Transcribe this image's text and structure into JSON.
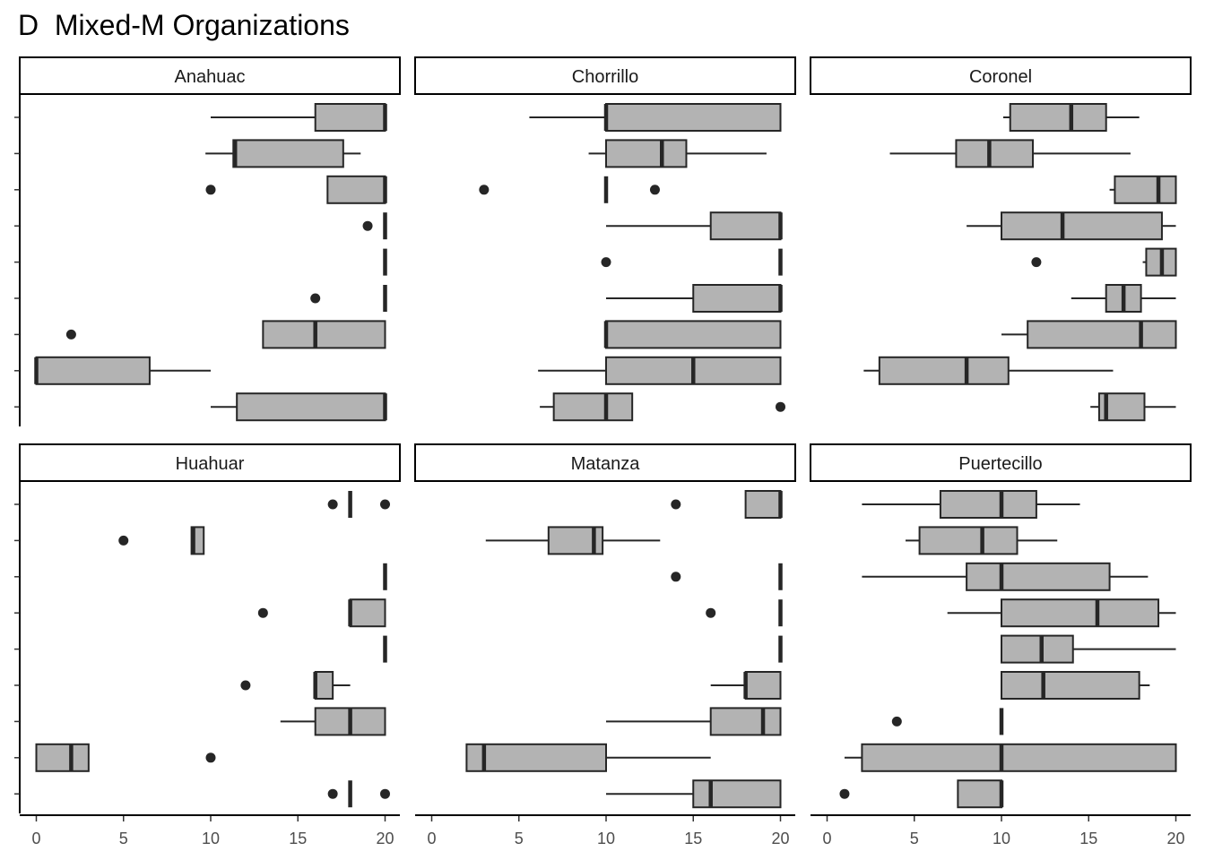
{
  "chart_data": {
    "type": "boxplot",
    "title": "D  Mixed-M Organizations",
    "orientation": "horizontal",
    "xlim": [
      -1,
      20.5
    ],
    "x_ticks": [
      0,
      5,
      10,
      15,
      20
    ],
    "x_tick_labels": [
      "0",
      "5",
      "10",
      "15",
      "20"
    ],
    "rows_per_panel": 9,
    "y_tick_labels_visible": false,
    "grid": false,
    "box_fill": "#b3b3b3",
    "line_color": "#262626",
    "panels": [
      {
        "name": "Anahuac",
        "boxes": [
          {
            "min": 10,
            "q1": 16,
            "median": 20,
            "q3": 20,
            "max": 20,
            "outliers": []
          },
          {
            "min": 9.7,
            "q1": 11.3,
            "median": 11.4,
            "q3": 17.6,
            "max": 18.6,
            "outliers": []
          },
          {
            "min": 16.7,
            "q1": 16.7,
            "median": 20,
            "q3": 20,
            "max": 20,
            "outliers": [
              10
            ]
          },
          {
            "min": 20,
            "q1": 20,
            "median": 20,
            "q3": 20,
            "max": 20,
            "outliers": [
              19
            ]
          },
          {
            "min": 20,
            "q1": 20,
            "median": 20,
            "q3": 20,
            "max": 20,
            "outliers": []
          },
          {
            "min": 20,
            "q1": 20,
            "median": 20,
            "q3": 20,
            "max": 20,
            "outliers": [
              16
            ]
          },
          {
            "min": 13,
            "q1": 13,
            "median": 16,
            "q3": 20,
            "max": 20,
            "outliers": [
              2
            ]
          },
          {
            "min": 0,
            "q1": 0,
            "median": 0,
            "q3": 6.5,
            "max": 10,
            "outliers": []
          },
          {
            "min": 10,
            "q1": 11.5,
            "median": 20,
            "q3": 20,
            "max": 20,
            "outliers": []
          }
        ]
      },
      {
        "name": "Chorrillo",
        "boxes": [
          {
            "min": 5.6,
            "q1": 10,
            "median": 10,
            "q3": 20,
            "max": 20,
            "outliers": []
          },
          {
            "min": 9,
            "q1": 10,
            "median": 13.2,
            "q3": 14.6,
            "max": 19.2,
            "outliers": []
          },
          {
            "min": 10,
            "q1": 10,
            "median": 10,
            "q3": 10,
            "max": 10,
            "outliers": [
              3,
              12.8
            ]
          },
          {
            "min": 10,
            "q1": 16,
            "median": 20,
            "q3": 20,
            "max": 20,
            "outliers": []
          },
          {
            "min": 20,
            "q1": 20,
            "median": 20,
            "q3": 20,
            "max": 20,
            "outliers": [
              10
            ]
          },
          {
            "min": 10,
            "q1": 15,
            "median": 20,
            "q3": 20,
            "max": 20,
            "outliers": []
          },
          {
            "min": 10,
            "q1": 10,
            "median": 10,
            "q3": 20,
            "max": 20,
            "outliers": []
          },
          {
            "min": 6.1,
            "q1": 10,
            "median": 15,
            "q3": 20,
            "max": 20,
            "outliers": []
          },
          {
            "min": 6.2,
            "q1": 7,
            "median": 10,
            "q3": 11.5,
            "max": 11.5,
            "outliers": [
              20
            ]
          }
        ]
      },
      {
        "name": "Coronel",
        "boxes": [
          {
            "min": 10.1,
            "q1": 10.5,
            "median": 14,
            "q3": 16,
            "max": 17.9,
            "outliers": []
          },
          {
            "min": 3.6,
            "q1": 7.4,
            "median": 9.3,
            "q3": 11.8,
            "max": 17.4,
            "outliers": []
          },
          {
            "min": 16.2,
            "q1": 16.5,
            "median": 19,
            "q3": 20,
            "max": 20,
            "outliers": []
          },
          {
            "min": 8,
            "q1": 10,
            "median": 13.5,
            "q3": 19.2,
            "max": 20,
            "outliers": []
          },
          {
            "min": 18.1,
            "q1": 18.3,
            "median": 19.2,
            "q3": 20,
            "max": 20,
            "outliers": [
              12
            ]
          },
          {
            "min": 14,
            "q1": 16,
            "median": 17,
            "q3": 18,
            "max": 20,
            "outliers": []
          },
          {
            "min": 10,
            "q1": 11.5,
            "median": 18,
            "q3": 20,
            "max": 20,
            "outliers": []
          },
          {
            "min": 2.1,
            "q1": 3,
            "median": 8,
            "q3": 10.4,
            "max": 16.4,
            "outliers": []
          },
          {
            "min": 15.1,
            "q1": 15.6,
            "median": 16,
            "q3": 18.2,
            "max": 20,
            "outliers": []
          }
        ]
      },
      {
        "name": "Huahuar",
        "boxes": [
          {
            "min": 18,
            "q1": 18,
            "median": 18,
            "q3": 18,
            "max": 18,
            "outliers": [
              17,
              20
            ]
          },
          {
            "min": 8.9,
            "q1": 8.9,
            "median": 9,
            "q3": 9.6,
            "max": 9.6,
            "outliers": [
              5
            ]
          },
          {
            "min": 20,
            "q1": 20,
            "median": 20,
            "q3": 20,
            "max": 20,
            "outliers": []
          },
          {
            "min": 18,
            "q1": 18,
            "median": 18,
            "q3": 20,
            "max": 20,
            "outliers": [
              13
            ]
          },
          {
            "min": 20,
            "q1": 20,
            "median": 20,
            "q3": 20,
            "max": 20,
            "outliers": []
          },
          {
            "min": 16,
            "q1": 16,
            "median": 16,
            "q3": 17,
            "max": 18,
            "outliers": [
              12
            ]
          },
          {
            "min": 14,
            "q1": 16,
            "median": 18,
            "q3": 20,
            "max": 20,
            "outliers": []
          },
          {
            "min": 0,
            "q1": 0,
            "median": 2,
            "q3": 3,
            "max": 3,
            "outliers": [
              10
            ]
          },
          {
            "min": 18,
            "q1": 18,
            "median": 18,
            "q3": 18,
            "max": 18,
            "outliers": [
              17,
              20
            ]
          }
        ]
      },
      {
        "name": "Matanza",
        "boxes": [
          {
            "min": 18,
            "q1": 18,
            "median": 20,
            "q3": 20,
            "max": 20,
            "outliers": [
              14
            ]
          },
          {
            "min": 3.1,
            "q1": 6.7,
            "median": 9.3,
            "q3": 9.8,
            "max": 13.1,
            "outliers": []
          },
          {
            "min": 20,
            "q1": 20,
            "median": 20,
            "q3": 20,
            "max": 20,
            "outliers": [
              14
            ]
          },
          {
            "min": 20,
            "q1": 20,
            "median": 20,
            "q3": 20,
            "max": 20,
            "outliers": [
              16
            ]
          },
          {
            "min": 20,
            "q1": 20,
            "median": 20,
            "q3": 20,
            "max": 20,
            "outliers": []
          },
          {
            "min": 16,
            "q1": 18,
            "median": 18,
            "q3": 20,
            "max": 20,
            "outliers": []
          },
          {
            "min": 10,
            "q1": 16,
            "median": 19,
            "q3": 20,
            "max": 20,
            "outliers": []
          },
          {
            "min": 2,
            "q1": 2,
            "median": 3,
            "q3": 10,
            "max": 16,
            "outliers": []
          },
          {
            "min": 10,
            "q1": 15,
            "median": 16,
            "q3": 20,
            "max": 20,
            "outliers": []
          }
        ]
      },
      {
        "name": "Puertecillo",
        "boxes": [
          {
            "min": 2,
            "q1": 6.5,
            "median": 10,
            "q3": 12,
            "max": 14.5,
            "outliers": []
          },
          {
            "min": 4.5,
            "q1": 5.3,
            "median": 8.9,
            "q3": 10.9,
            "max": 13.2,
            "outliers": []
          },
          {
            "min": 2,
            "q1": 8,
            "median": 10,
            "q3": 16.2,
            "max": 18.4,
            "outliers": []
          },
          {
            "min": 6.9,
            "q1": 10,
            "median": 15.5,
            "q3": 19,
            "max": 20,
            "outliers": []
          },
          {
            "min": 10,
            "q1": 10,
            "median": 12.3,
            "q3": 14.1,
            "max": 20,
            "outliers": []
          },
          {
            "min": 10,
            "q1": 10,
            "median": 12.4,
            "q3": 17.9,
            "max": 18.5,
            "outliers": []
          },
          {
            "min": 10,
            "q1": 10,
            "median": 10,
            "q3": 10,
            "max": 10,
            "outliers": [
              4
            ]
          },
          {
            "min": 1,
            "q1": 2,
            "median": 10,
            "q3": 20,
            "max": 20,
            "outliers": []
          },
          {
            "min": 7.5,
            "q1": 7.5,
            "median": 10,
            "q3": 10,
            "max": 10,
            "outliers": [
              1
            ]
          }
        ]
      }
    ]
  }
}
